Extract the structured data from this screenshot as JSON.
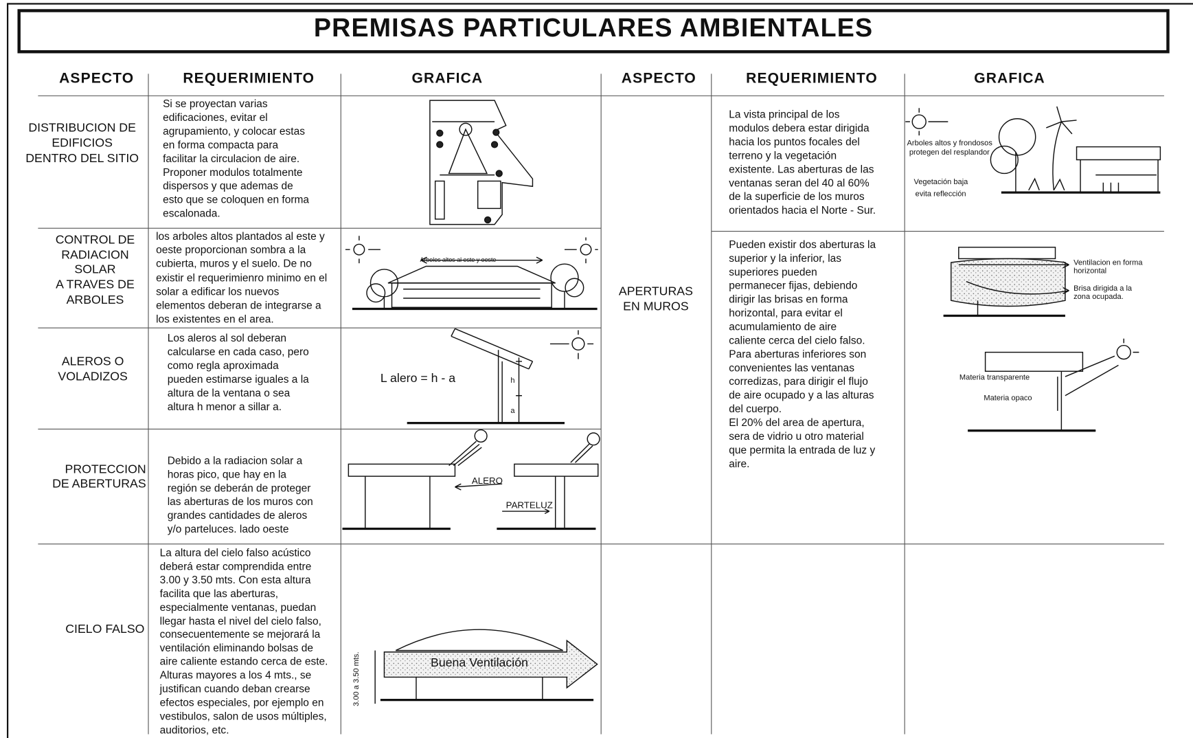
{
  "header": {
    "title": "PREMISAS PARTICULARES AMBIENTALES"
  },
  "columns": [
    "ASPECTO",
    "REQUERIMIENTO",
    "GRAFICA",
    "ASPECTO",
    "REQUERIMIENTO",
    "GRAFICA"
  ],
  "left_rows": [
    {
      "aspect": [
        "DISTRIBUCION DE",
        "EDIFICIOS",
        "DENTRO DEL SITIO"
      ],
      "requirement": [
        "Si se proyectan varias",
        "edificaciones, evitar el",
        "agrupamiento, y colocar estas",
        "en forma compacta para",
        "facilitar la circulacion de aire.",
        "Proponer modulos totalmente",
        "dispersos y que ademas de",
        "esto que se coloquen en forma",
        "escalonada."
      ],
      "graphic_labels": []
    },
    {
      "aspect": [
        "CONTROL DE",
        "RADIACION",
        "SOLAR",
        "A TRAVES DE",
        "ARBOLES"
      ],
      "requirement": [
        "los arboles altos plantados al este y",
        "oeste proporcionan sombra a la",
        "cubierta, muros y el suelo. De no",
        "existir el requerimienro minimo en el",
        "solar a edificar los nuevos",
        "elementos deberan de integrarse a",
        "los existentes en el area."
      ],
      "graphic_labels": [
        "Arboles altos al este y oeste"
      ]
    },
    {
      "aspect": [
        "ALEROS O",
        "VOLADIZOS"
      ],
      "requirement": [
        "Los aleros al sol deberan",
        "calcularse en cada caso, pero",
        "como regla aproximada",
        "pueden estimarse iguales a la",
        "altura de la ventana o sea",
        "altura h menor a sillar a."
      ],
      "graphic_labels": [
        "L alero = h - a",
        "h",
        "a"
      ]
    },
    {
      "aspect": [
        "PROTECCION",
        "DE ABERTURAS"
      ],
      "requirement": [
        "Debido a la radiacion solar a",
        "horas pico, que hay en la",
        "región se deberán de proteger",
        "las aberturas de los muros con",
        "grandes cantidades de aleros",
        "y/o parteluces. lado oeste"
      ],
      "graphic_labels": [
        "ALERO",
        "PARTELUZ"
      ]
    },
    {
      "aspect": [
        "CIELO FALSO"
      ],
      "requirement": [
        "La altura del cielo falso acústico",
        "deberá estar comprendida entre",
        "3.00 y 3.50 mts. Con esta altura",
        "facilita que las aberturas,",
        "especialmente ventanas, puedan",
        "llegar  hasta el nivel del cielo falso,",
        "consecuentemente se mejorará la",
        "ventilación eliminando bolsas de",
        "aire caliente estando cerca de este.",
        "Alturas mayores a los 4 mts., se",
        "justifican cuando deban crearse",
        "efectos especiales, por ejemplo en",
        "vestibulos, salon de usos múltiples,",
        "auditorios, etc."
      ],
      "graphic_labels": [
        "Buena Ventilación",
        "3.00 a 3.50 mts."
      ]
    }
  ],
  "right_block": {
    "aspect": [
      "APERTURAS",
      "EN MUROS"
    ],
    "rows": [
      {
        "requirement": [
          "La vista principal de los",
          "modulos debera estar dirigida",
          "hacia los puntos focales del",
          "terreno y la vegetación",
          "existente. Las aberturas de las",
          "ventanas seran del 40 al 60%",
          "de la superficie de los muros",
          "orientados hacia el Norte - Sur."
        ],
        "graphic_labels": [
          "Arboles altos y frondosos",
          "protegen del resplandor",
          "Vegetación baja",
          "evita reflección"
        ]
      },
      {
        "requirement": [
          "Pueden existir dos aberturas la",
          "superior y la inferior, las",
          "superiores pueden",
          "permanecer fijas, debiendo",
          "dirigir las brisas en forma",
          "horizontal, para evitar el",
          "acumulamiento de aire",
          "caliente cerca del cielo falso.",
          "Para aberturas inferiores son",
          "convenientes las ventanas",
          "corredizas, para dirigir el flujo",
          "de aire ocupado y a las alturas",
          "del cuerpo.",
          "El 20% del area de apertura,",
          "sera de vidrio u otro material",
          "que permita la entrada de luz y",
          "aire."
        ],
        "graphic_labels": [
          "Ventilacion en forma",
          "horizontal",
          "Brisa dirigida a la",
          "zona ocupada.",
          "Materia transparente",
          "Materia opaco"
        ]
      }
    ]
  }
}
